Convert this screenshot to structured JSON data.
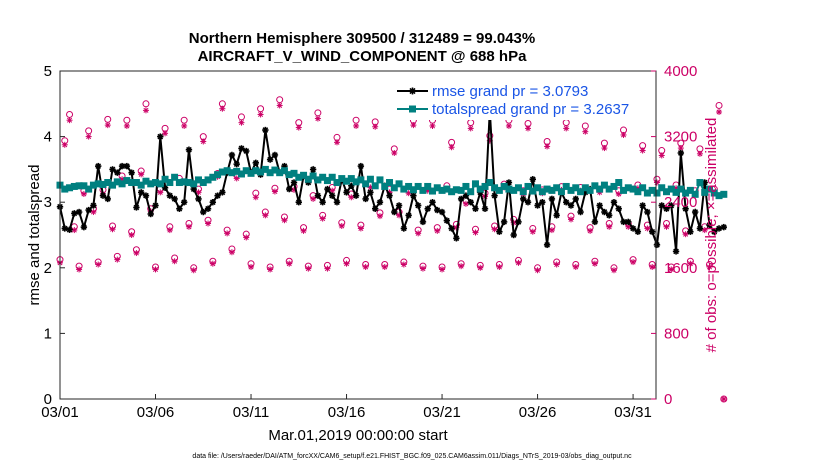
{
  "chart_data": {
    "type": "line",
    "title": "Northern Hemisphere 309500 / 312489 = 99.043%",
    "subtitle": "AIRCRAFT_V_WIND_COMPONENT @ 688 hPa",
    "xlabel": "Mar.01,2019 00:00:00 start",
    "ylabel": "rmse and totalspread",
    "ylabel_right": "# of obs: o=possible; ×=assimilated",
    "footer": "data file: /Users/raeder/DAI/ATM_forcXX/CAM6_setup/f.e21.FHIST_BGC.f09_025.CAM6assim.011/Diags_NTrS_2019-03/obs_diag_output.nc",
    "xlim": [
      1,
      32.2
    ],
    "ylim": [
      0,
      5
    ],
    "ylim_right": [
      0,
      4000
    ],
    "x_ticks": [
      1,
      6,
      11,
      16,
      21,
      26,
      31
    ],
    "x_tick_labels": [
      "03/01",
      "03/06",
      "03/11",
      "03/16",
      "03/21",
      "03/26",
      "03/31"
    ],
    "y_ticks": [
      0,
      1,
      2,
      3,
      4,
      5
    ],
    "y_tick_labels": [
      "0",
      "1",
      "2",
      "3",
      "4",
      "5"
    ],
    "y_ticks_right": [
      0,
      800,
      1600,
      2400,
      3200,
      4000
    ],
    "y_tick_labels_right": [
      "0",
      "800",
      "1600",
      "2400",
      "3200",
      "4000"
    ],
    "series": [
      {
        "name": "rmse",
        "legend": "rmse grand pr = 3.0793",
        "color": "#000000",
        "marker": "asterisk",
        "x_start": 1,
        "x_step": 0.25,
        "values": [
          2.93,
          2.6,
          2.58,
          2.83,
          2.85,
          2.62,
          2.88,
          2.95,
          3.55,
          3.1,
          3.05,
          3.5,
          3.45,
          3.55,
          3.55,
          3.45,
          2.92,
          3.15,
          3.1,
          2.82,
          2.95,
          4.0,
          3.22,
          3.1,
          3.05,
          2.9,
          3.0,
          3.8,
          3.2,
          3.05,
          2.85,
          2.9,
          3.0,
          3.1,
          3.15,
          3.45,
          3.72,
          3.58,
          3.82,
          3.78,
          3.45,
          3.6,
          3.42,
          4.1,
          3.65,
          3.72,
          3.45,
          3.55,
          3.2,
          3.3,
          3.0,
          3.4,
          3.3,
          3.5,
          3.1,
          3.0,
          3.2,
          3.1,
          3.0,
          3.35,
          3.15,
          3.25,
          3.1,
          3.55,
          3.05,
          3.15,
          2.9,
          3.0,
          3.25,
          3.1,
          2.85,
          2.95,
          2.6,
          2.8,
          3.1,
          2.95,
          2.7,
          2.9,
          3.0,
          2.88,
          2.85,
          2.72,
          2.6,
          2.45,
          3.05,
          3.1,
          3.0,
          2.9,
          3.15,
          2.9,
          4.4,
          3.1,
          2.55,
          2.7,
          3.3,
          2.5,
          2.7,
          3.05,
          3.0,
          3.35,
          2.95,
          3.0,
          2.35,
          3.05,
          2.8,
          3.15,
          3.0,
          2.95,
          3.05,
          2.85,
          3.15,
          3.2,
          2.7,
          2.95,
          2.85,
          2.8,
          3.0,
          2.9,
          2.7,
          2.7,
          2.6,
          2.55,
          2.95,
          2.85,
          2.55,
          2.35,
          2.95,
          2.9,
          2.95,
          2.25,
          3.75,
          2.9,
          2.55,
          2.85,
          2.6,
          3.3,
          2.65,
          2.55,
          2.6,
          2.62
        ]
      },
      {
        "name": "totalspread",
        "legend": "totalspread grand pr = 3.2637",
        "color": "#008080",
        "marker": "square",
        "x_start": 1,
        "x_step": 0.25,
        "values": [
          3.26,
          3.2,
          3.22,
          3.24,
          3.25,
          3.25,
          3.2,
          3.26,
          3.28,
          3.27,
          3.3,
          3.26,
          3.31,
          3.28,
          3.33,
          3.3,
          3.3,
          3.26,
          3.32,
          3.28,
          3.3,
          3.28,
          3.35,
          3.3,
          3.38,
          3.3,
          3.31,
          3.3,
          3.28,
          3.34,
          3.3,
          3.34,
          3.38,
          3.42,
          3.46,
          3.48,
          3.45,
          3.47,
          3.43,
          3.48,
          3.44,
          3.48,
          3.46,
          3.5,
          3.45,
          3.49,
          3.45,
          3.48,
          3.42,
          3.44,
          3.38,
          3.41,
          3.35,
          3.4,
          3.34,
          3.38,
          3.33,
          3.38,
          3.3,
          3.36,
          3.32,
          3.36,
          3.31,
          3.34,
          3.28,
          3.35,
          3.25,
          3.34,
          3.24,
          3.3,
          3.22,
          3.28,
          3.2,
          3.24,
          3.19,
          3.24,
          3.18,
          3.24,
          3.17,
          3.22,
          3.18,
          3.2,
          3.16,
          3.19,
          3.18,
          3.24,
          3.16,
          3.28,
          3.2,
          3.24,
          3.3,
          3.22,
          3.18,
          3.24,
          3.2,
          3.18,
          3.22,
          3.16,
          3.24,
          3.17,
          3.22,
          3.16,
          3.2,
          3.18,
          3.22,
          3.16,
          3.24,
          3.18,
          3.22,
          3.16,
          3.22,
          3.18,
          3.25,
          3.2,
          3.26,
          3.2,
          3.24,
          3.3,
          3.18,
          3.22,
          3.2,
          3.16,
          3.22,
          3.14,
          3.18,
          3.14,
          3.22,
          3.16,
          3.2,
          3.15,
          3.2,
          3.14,
          3.18,
          3.12,
          3.3,
          3.15,
          3.2,
          3.14,
          3.1,
          3.12
        ]
      }
    ],
    "obs_possible": {
      "color": "#cc0066",
      "marker": "circle",
      "x_start": 1,
      "x_step": 0.25,
      "values": [
        1700,
        3150,
        3470,
        2100,
        1620,
        2540,
        3270,
        2320,
        1670,
        2550,
        3410,
        2110,
        1740,
        2720,
        3400,
        2040,
        1820,
        2780,
        3600,
        2320,
        1610,
        2560,
        3300,
        2100,
        1720,
        2690,
        3400,
        2140,
        1600,
        2560,
        3200,
        2180,
        1680,
        2750,
        3600,
        2060,
        1830,
        2730,
        3440,
        2010,
        1650,
        2510,
        3540,
        2280,
        1610,
        2570,
        3650,
        2220,
        1680,
        2590,
        3370,
        2090,
        1620,
        2480,
        3490,
        2240,
        1630,
        2580,
        3190,
        2150,
        1690,
        2500,
        3400,
        2120,
        1640,
        2620,
        3380,
        2270,
        1640,
        2560,
        3050,
        2280,
        1670,
        2550,
        3400,
        2060,
        1620,
        2580,
        3400,
        2090,
        1610,
        2600,
        3130,
        2130,
        1650,
        2420,
        3370,
        2070,
        1630,
        2510,
        3210,
        2110,
        1640,
        2620,
        3400,
        2190,
        1690,
        2540,
        3360,
        2080,
        1600,
        2550,
        3140,
        2100,
        1670,
        2590,
        3370,
        2230,
        1640,
        2580,
        3330,
        2090,
        1680,
        2560,
        3120,
        2140,
        1600,
        2540,
        3280,
        2140,
        1700,
        2610,
        3090,
        2120,
        1640,
        2680,
        3030,
        2140,
        1610,
        2610,
        3120,
        2050,
        1680,
        2540,
        3050,
        2100,
        1640,
        2560,
        3580,
        0
      ]
    },
    "obs_assimilated": {
      "color": "#cc0066",
      "marker": "asterisk",
      "x_start": 1,
      "x_step": 0.25,
      "values": [
        1660,
        3100,
        3400,
        2060,
        1580,
        2500,
        3200,
        2280,
        1640,
        2500,
        3340,
        2070,
        1700,
        2680,
        3330,
        2000,
        1780,
        2740,
        3520,
        2290,
        1580,
        2520,
        3240,
        2060,
        1680,
        2640,
        3330,
        2100,
        1570,
        2520,
        3140,
        2140,
        1650,
        2710,
        3540,
        2020,
        1790,
        2690,
        3370,
        1970,
        1610,
        2460,
        3470,
        2240,
        1580,
        2530,
        3580,
        2180,
        1650,
        2550,
        3310,
        2050,
        1590,
        2440,
        3420,
        2200,
        1590,
        2540,
        3130,
        2110,
        1650,
        2460,
        3330,
        2080,
        1610,
        2580,
        3320,
        2230,
        1610,
        2520,
        3000,
        2240,
        1640,
        2510,
        3340,
        2020,
        1590,
        2540,
        3330,
        2050,
        1580,
        2560,
        3070,
        2090,
        1620,
        2380,
        3300,
        2030,
        1600,
        2470,
        3150,
        2070,
        1610,
        2580,
        3330,
        2150,
        1660,
        2500,
        3300,
        2040,
        1570,
        2510,
        3080,
        2060,
        1640,
        2550,
        3300,
        2190,
        1610,
        2540,
        3260,
        2050,
        1650,
        2520,
        3060,
        2100,
        1570,
        2500,
        3220,
        2100,
        1670,
        2570,
        3030,
        2080,
        1610,
        2640,
        2970,
        2100,
        1580,
        2570,
        3060,
        2010,
        1650,
        2500,
        2990,
        2060,
        1610,
        2520,
        3500,
        0
      ]
    }
  }
}
